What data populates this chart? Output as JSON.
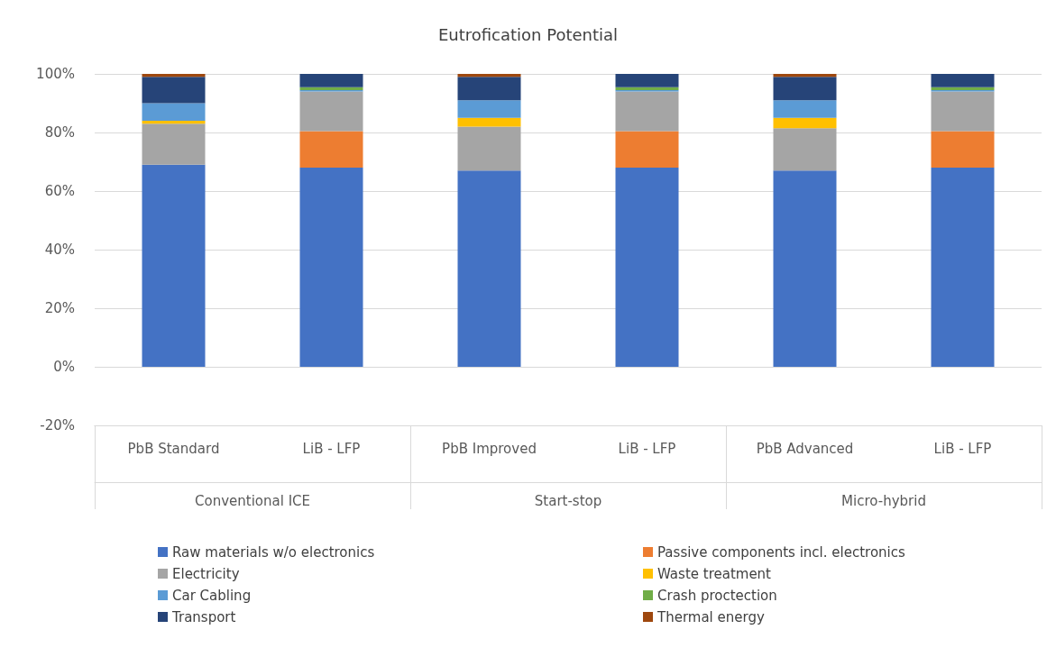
{
  "chart_data": {
    "type": "bar",
    "title": "Eutrofication Potential",
    "stacked": true,
    "categories": [
      "PbB Standard",
      "LiB - LFP",
      "PbB Improved",
      "LiB - LFP",
      "PbB Advanced",
      "LiB - LFP"
    ],
    "annotations": [
      "Conventional ICE",
      "Start-stop",
      "Micro-hybrid"
    ],
    "series": [
      {
        "name": "Raw materials w/o electronics",
        "color": "#4472c4",
        "values": [
          69,
          68,
          67,
          68,
          67,
          68
        ]
      },
      {
        "name": "Passive components incl. electronics",
        "color": "#ed7d31",
        "values": [
          0,
          12.5,
          0,
          12.5,
          0,
          12.5
        ]
      },
      {
        "name": "Electricity",
        "color": "#a5a5a5",
        "values": [
          14,
          13.5,
          15,
          13.5,
          14.5,
          13.5
        ]
      },
      {
        "name": "Waste treatment",
        "color": "#ffc000",
        "values": [
          1,
          0,
          3,
          0,
          3.5,
          0
        ]
      },
      {
        "name": "Car Cabling",
        "color": "#5b9bd5",
        "values": [
          6,
          0.5,
          6,
          0.5,
          6,
          0.5
        ]
      },
      {
        "name": "Crash proctection",
        "color": "#70ad47",
        "values": [
          0,
          1,
          0,
          1,
          0,
          1
        ]
      },
      {
        "name": "Transport",
        "color": "#264478",
        "values": [
          9,
          4.5,
          8,
          4.5,
          8,
          4.5
        ]
      },
      {
        "name": "Thermal energy",
        "color": "#9e480e",
        "values": [
          1,
          0,
          1,
          0,
          1,
          0
        ]
      }
    ],
    "ylim": [
      -20,
      100
    ],
    "yticks": [
      {
        "value": -20,
        "label": "-20%"
      },
      {
        "value": 0,
        "label": "0%"
      },
      {
        "value": 20,
        "label": "20%"
      },
      {
        "value": 40,
        "label": "40%"
      },
      {
        "value": 60,
        "label": "60%"
      },
      {
        "value": 80,
        "label": "80%"
      },
      {
        "value": 100,
        "label": "100%"
      }
    ],
    "grid": "y",
    "legend": "bottom"
  }
}
